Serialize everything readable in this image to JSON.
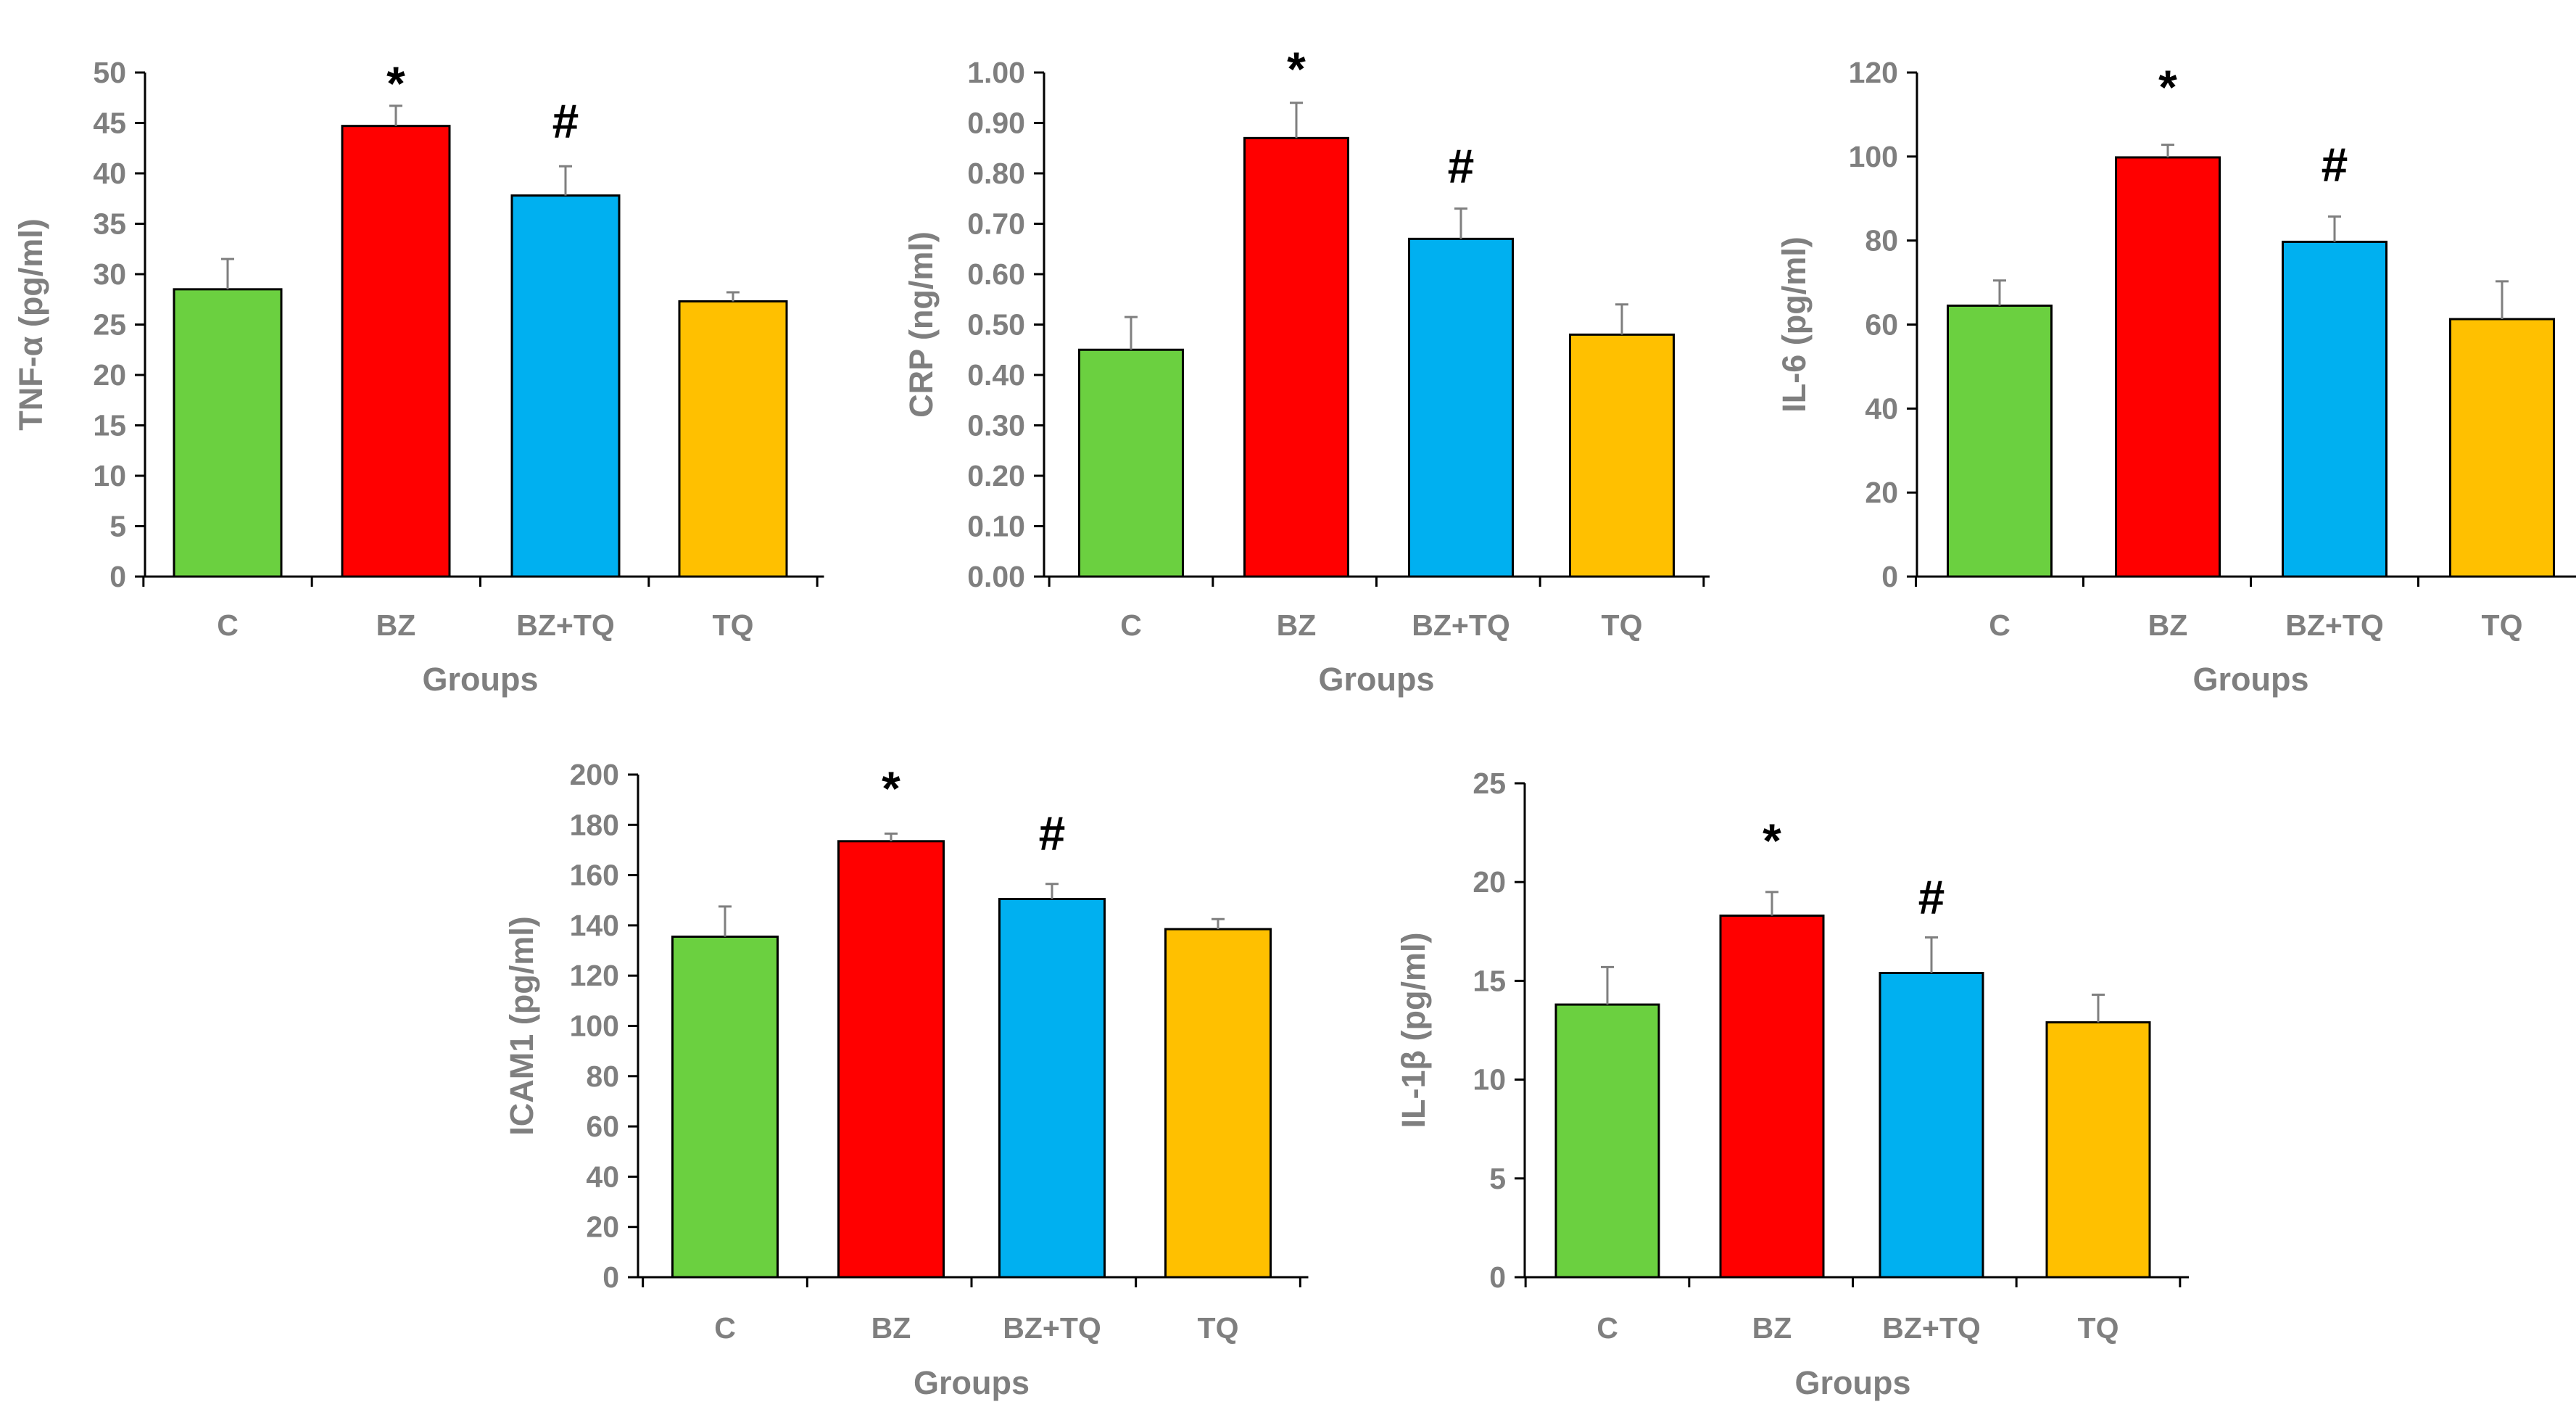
{
  "colors": {
    "C": "#6bd040",
    "BZ": "#ff0000",
    "BZ+TQ": "#00b0f0",
    "TQ": "#ffc000",
    "axis": "#000000",
    "error_bar": "#7f7f7f",
    "text": "#7f7f7f"
  },
  "chart_data": [
    {
      "type": "bar",
      "categories": [
        "C",
        "BZ",
        "BZ+TQ",
        "TQ"
      ],
      "values": [
        28.5,
        44.7,
        37.8,
        27.3
      ],
      "errors": [
        3.0,
        2.0,
        2.9,
        0.9
      ],
      "significance": [
        "",
        "*",
        "#",
        ""
      ],
      "xlabel": "Groups",
      "ylabel": "TNF-α (pg/ml)",
      "ylim": [
        0,
        50
      ],
      "yticks": [
        "0",
        "5",
        "10",
        "15",
        "20",
        "25",
        "30",
        "35",
        "40",
        "45",
        "50"
      ],
      "grid": false,
      "legend": "none"
    },
    {
      "type": "bar",
      "categories": [
        "C",
        "BZ",
        "BZ+TQ",
        "TQ"
      ],
      "values": [
        0.45,
        0.87,
        0.67,
        0.48
      ],
      "errors": [
        0.065,
        0.07,
        0.06,
        0.06
      ],
      "significance": [
        "",
        "*",
        "#",
        ""
      ],
      "xlabel": "Groups",
      "ylabel": "CRP (ng/ml)",
      "ylim": [
        0,
        1.0
      ],
      "yticks": [
        "0.00",
        "0.10",
        "0.20",
        "0.30",
        "0.40",
        "0.50",
        "0.60",
        "0.70",
        "0.80",
        "0.90",
        "1.00"
      ],
      "grid": false,
      "legend": "none"
    },
    {
      "type": "bar",
      "categories": [
        "C",
        "BZ",
        "BZ+TQ",
        "TQ"
      ],
      "values": [
        64.5,
        99.8,
        79.7,
        61.3
      ],
      "errors": [
        6.0,
        3.0,
        6.0,
        9.0
      ],
      "significance": [
        "",
        "*",
        "#",
        ""
      ],
      "xlabel": "Groups",
      "ylabel": "IL-6 (pg/ml)",
      "ylim": [
        0,
        120
      ],
      "yticks": [
        "0",
        "20",
        "40",
        "60",
        "80",
        "100",
        "120"
      ],
      "grid": false,
      "legend": "none"
    },
    {
      "type": "bar",
      "categories": [
        "C",
        "BZ",
        "BZ+TQ",
        "TQ"
      ],
      "values": [
        135.5,
        173.5,
        150.5,
        138.5
      ],
      "errors": [
        12.0,
        3.0,
        6.0,
        4.0
      ],
      "significance": [
        "",
        "*",
        "#",
        ""
      ],
      "xlabel": "Groups",
      "ylabel": "ICAM1 (pg/ml)",
      "ylim": [
        0,
        200
      ],
      "yticks": [
        "0",
        "20",
        "40",
        "60",
        "80",
        "100",
        "120",
        "140",
        "160",
        "180",
        "200"
      ],
      "grid": false,
      "legend": "none"
    },
    {
      "type": "bar",
      "categories": [
        "C",
        "BZ",
        "BZ+TQ",
        "TQ"
      ],
      "values": [
        13.8,
        18.3,
        15.4,
        12.9
      ],
      "errors": [
        1.9,
        1.2,
        1.8,
        1.4
      ],
      "significance": [
        "",
        "*",
        "#",
        ""
      ],
      "xlabel": "Groups",
      "ylabel": "IL-1β (pg/ml)",
      "ylim": [
        0,
        25
      ],
      "yticks": [
        "0",
        "5",
        "10",
        "15",
        "20",
        "25"
      ],
      "grid": false,
      "legend": "none"
    }
  ]
}
